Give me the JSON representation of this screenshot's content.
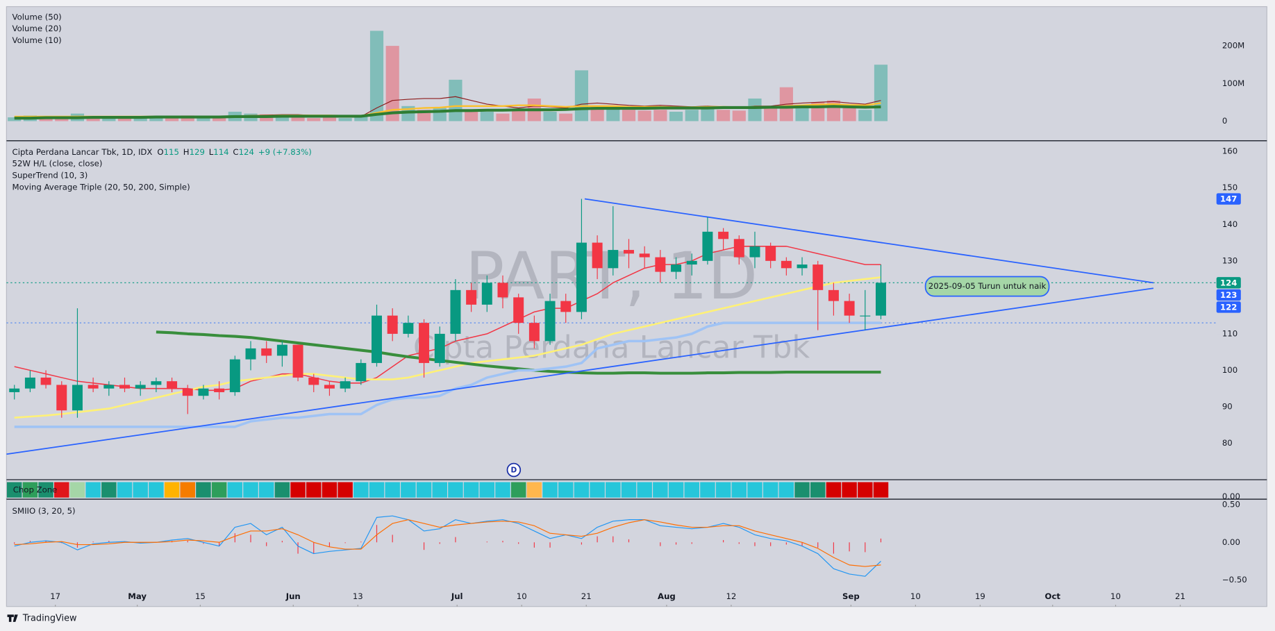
{
  "chart_data": {
    "type": "candlestick",
    "title": "Cipta Perdana Lancar Tbk, 1D, IDX",
    "legend_values": [
      {
        "key": "O",
        "value": 115
      },
      {
        "key": "H",
        "value": 129
      },
      {
        "key": "L",
        "value": 114
      },
      {
        "key": "C",
        "value": 124
      }
    ],
    "change": "+9 (+7.83%)",
    "indicators": [
      "52W H/L (close, close)",
      "SuperTrend (10, 3)",
      "Moving Average Triple (20, 50, 200, Simple)"
    ],
    "watermark": [
      "PART, 1D",
      "Cipta Perdana Lancar Tbk"
    ],
    "xlim": [
      0,
      80
    ],
    "xticks": [
      {
        "value": 3.1,
        "label": "17"
      },
      {
        "value": 8.3,
        "label": "May"
      },
      {
        "value": 12.3,
        "label": "15"
      },
      {
        "value": 18.2,
        "label": "Jun"
      },
      {
        "value": 22.3,
        "label": "13"
      },
      {
        "value": 28.6,
        "label": "Jul"
      },
      {
        "value": 32.7,
        "label": "10"
      },
      {
        "value": 36.8,
        "label": "21"
      },
      {
        "value": 41.9,
        "label": "Aug"
      },
      {
        "value": 46.0,
        "label": "12"
      },
      {
        "value": 53.6,
        "label": "Sep"
      },
      {
        "value": 57.7,
        "label": "10"
      },
      {
        "value": 61.8,
        "label": "19"
      },
      {
        "value": 66.4,
        "label": "Oct"
      },
      {
        "value": 70.4,
        "label": "10"
      },
      {
        "value": 74.5,
        "label": "21"
      }
    ],
    "ylim": [
      70,
      162.5
    ],
    "yticks": [
      80,
      90,
      100,
      110,
      120,
      130,
      140,
      150,
      160
    ],
    "colors": {
      "up": "#089981",
      "down": "#f23645"
    },
    "candles": {
      "open": [
        94,
        95,
        98,
        96,
        89,
        96,
        95,
        96,
        95,
        96,
        97,
        95,
        93,
        95,
        94,
        103,
        106,
        104,
        107,
        98,
        96,
        95,
        97,
        102,
        115,
        110,
        113,
        102,
        110,
        122,
        118,
        124,
        120,
        113,
        108,
        119,
        116,
        135,
        128,
        133,
        132,
        131,
        127,
        129,
        130,
        138,
        136,
        131,
        134,
        130,
        128,
        129,
        122,
        119,
        115,
        115
      ],
      "high": [
        96,
        100,
        100,
        97,
        117,
        98,
        97,
        98,
        97,
        98,
        98,
        96,
        96,
        97,
        104,
        108,
        108,
        108,
        107,
        99,
        97,
        98,
        103,
        118,
        117,
        115,
        114,
        112,
        125,
        124,
        126,
        126,
        121,
        115,
        121,
        121,
        147,
        137,
        145,
        136,
        134,
        133,
        131,
        132,
        142,
        139,
        137,
        138,
        135,
        131,
        131,
        130,
        124,
        121,
        122,
        129
      ],
      "low": [
        92,
        94,
        95,
        87,
        87,
        94,
        93,
        94,
        93,
        94,
        94,
        88,
        92,
        92,
        93,
        100,
        102,
        101,
        97,
        94,
        93,
        94,
        96,
        101,
        108,
        109,
        98,
        101,
        108,
        116,
        116,
        117,
        110,
        106,
        107,
        113,
        114,
        125,
        126,
        128,
        128,
        124,
        125,
        126,
        129,
        133,
        129,
        128,
        128,
        126,
        126,
        111,
        115,
        113,
        111,
        114
      ],
      "close": [
        95,
        98,
        96,
        89,
        96,
        95,
        96,
        95,
        96,
        97,
        95,
        93,
        95,
        94,
        103,
        106,
        104,
        107,
        98,
        96,
        95,
        97,
        102,
        115,
        110,
        113,
        102,
        110,
        122,
        118,
        124,
        120,
        113,
        108,
        119,
        116,
        135,
        128,
        133,
        132,
        131,
        127,
        129,
        130,
        138,
        136,
        131,
        134,
        130,
        128,
        129,
        122,
        119,
        115,
        115,
        124
      ]
    },
    "lines": [
      {
        "color": "#f23645",
        "width": 1.3,
        "values": [
          101,
          100,
          99,
          98,
          97,
          96.5,
          96,
          95.5,
          95,
          95,
          95,
          95,
          94.5,
          94.5,
          95,
          97,
          98,
          99,
          99,
          98,
          97,
          96.5,
          96.5,
          98,
          101,
          104,
          105,
          106,
          108,
          109,
          110,
          112,
          114,
          116,
          117,
          117,
          119,
          121,
          124,
          126,
          128,
          129,
          129,
          130,
          132,
          133,
          134,
          134,
          134,
          134,
          133,
          132,
          131,
          130,
          129,
          129
        ]
      },
      {
        "color": "#fff176",
        "width": 2.2,
        "values": [
          87,
          87.3,
          87.6,
          88,
          88.5,
          89,
          89.5,
          90.5,
          91.5,
          92.5,
          93.5,
          94.5,
          95.5,
          96,
          97,
          97.5,
          98,
          98.5,
          99,
          99,
          98.5,
          98,
          97.5,
          97.5,
          97.5,
          98,
          99,
          100,
          101,
          102,
          102.5,
          103,
          103.5,
          104,
          105,
          106,
          107,
          108.5,
          110,
          111,
          112,
          113,
          114,
          115,
          116,
          117,
          118,
          119,
          120,
          121,
          122,
          123,
          124,
          124.5,
          125,
          125.5
        ]
      },
      {
        "color": "#388e3c",
        "width": 3.5,
        "values": [
          null,
          null,
          null,
          null,
          null,
          null,
          null,
          null,
          null,
          110.5,
          110.3,
          110,
          109.8,
          109.5,
          109.3,
          109,
          108.5,
          108,
          107.5,
          107,
          106.5,
          106,
          105.5,
          105,
          104.3,
          103.7,
          103.2,
          102.7,
          102.2,
          101.7,
          101.2,
          100.8,
          100.4,
          100,
          99.7,
          99.5,
          99.3,
          99.2,
          99.2,
          99.3,
          99.3,
          99.2,
          99.2,
          99.2,
          99.3,
          99.3,
          99.4,
          99.4,
          99.4,
          99.5,
          99.5,
          99.5,
          99.5,
          99.5,
          99.5,
          99.5
        ]
      },
      {
        "color": "#9fc3f5",
        "width": 3,
        "values": [
          84.5,
          84.5,
          84.5,
          84.5,
          84.5,
          84.5,
          84.5,
          84.5,
          84.5,
          84.5,
          84.5,
          84.5,
          84.5,
          84.5,
          84.5,
          86,
          86.5,
          87,
          87,
          87.5,
          88,
          88,
          88,
          90.5,
          92,
          92.5,
          92.5,
          93,
          95,
          96,
          98,
          99,
          100,
          100,
          100.5,
          101,
          102,
          106,
          107,
          108,
          108,
          108.5,
          109,
          110,
          112,
          113,
          113,
          113,
          113,
          113,
          113,
          113,
          113,
          113,
          113,
          113
        ]
      }
    ],
    "trendlines": [
      {
        "color": "#2962ff",
        "x": [
          0,
          72.8
        ],
        "y": [
          77,
          122.5
        ]
      },
      {
        "color": "#2962ff",
        "x": [
          36.7,
          72.8
        ],
        "y": [
          147,
          124
        ]
      }
    ],
    "hlines": [
      {
        "value": 124,
        "color": "#089981"
      },
      {
        "value": 113,
        "color": "#5b8def"
      }
    ],
    "price_labels": [
      {
        "value": 147,
        "color": "#2962ff"
      },
      {
        "value": 124,
        "color": "#089981"
      },
      {
        "value": 123,
        "color": "#2962ff"
      },
      {
        "value": 122,
        "color": "#2962ff"
      }
    ],
    "annotation": {
      "text": "2025-09-05 Turun untuk naik",
      "x": 62.25,
      "y": 123
    },
    "marker": {
      "label": "D",
      "x": 32.2
    },
    "volume": {
      "legend": [
        "Volume (50)",
        "Volume (20)",
        "Volume (10)"
      ],
      "ylim": [
        -50,
        300
      ],
      "yticks": [
        0,
        {
          "value": 100,
          "label": "100M"
        },
        {
          "value": 200,
          "label": "200M"
        }
      ],
      "values": [
        10,
        15,
        8,
        12,
        20,
        8,
        10,
        12,
        8,
        10,
        9,
        15,
        10,
        8,
        25,
        20,
        18,
        15,
        12,
        8,
        10,
        8,
        12,
        240,
        200,
        40,
        30,
        35,
        110,
        30,
        25,
        20,
        30,
        60,
        25,
        20,
        135,
        40,
        35,
        30,
        28,
        30,
        25,
        30,
        35,
        30,
        28,
        60,
        35,
        90,
        40,
        50,
        55,
        40,
        30,
        150
      ],
      "ma": [
        {
          "color": "#8d1c1c",
          "width": 1,
          "values": [
            10,
            11,
            11,
            12,
            13,
            12,
            12,
            11,
            11,
            12,
            12,
            13,
            12,
            11,
            13,
            15,
            16,
            17,
            17,
            15,
            14,
            12,
            12,
            35,
            55,
            58,
            60,
            60,
            65,
            55,
            45,
            40,
            35,
            40,
            38,
            35,
            45,
            48,
            45,
            42,
            40,
            42,
            40,
            38,
            40,
            38,
            35,
            40,
            40,
            45,
            48,
            50,
            52,
            48,
            45,
            55
          ]
        },
        {
          "color": "#fbc02d",
          "width": 2,
          "values": [
            12,
            12,
            12,
            12,
            12,
            12,
            12,
            12,
            12,
            12,
            12,
            12,
            12,
            12,
            13,
            14,
            14,
            15,
            15,
            15,
            15,
            14,
            14,
            22,
            30,
            32,
            35,
            36,
            40,
            40,
            40,
            40,
            42,
            42,
            40,
            38,
            40,
            40,
            40,
            38,
            38,
            38,
            37,
            37,
            38,
            38,
            37,
            38,
            38,
            40,
            42,
            44,
            45,
            43,
            42,
            48
          ]
        },
        {
          "color": "#2e7d32",
          "width": 3.5,
          "values": [
            8,
            8,
            9,
            9,
            9,
            10,
            10,
            10,
            10,
            11,
            11,
            11,
            11,
            11,
            12,
            12,
            12,
            13,
            13,
            13,
            13,
            13,
            13,
            18,
            22,
            24,
            25,
            26,
            28,
            28,
            29,
            29,
            30,
            30,
            30,
            31,
            33,
            34,
            34,
            34,
            34,
            35,
            35,
            35,
            35,
            36,
            36,
            36,
            37,
            37,
            38,
            38,
            39,
            38,
            37,
            38
          ]
        }
      ]
    },
    "chop_zone": {
      "title": "Chop Zone",
      "yticks": [
        {
          "value": 0,
          "label": "0.00"
        }
      ],
      "colors": [
        "#1a8f6e",
        "#2e9e5b",
        "#1a8f6e",
        "#e0161b",
        "#a5d6a7",
        "#26c6da",
        "#1a8f6e",
        "#26c6da",
        "#26c6da",
        "#26c6da",
        "#ffb300",
        "#f57c00",
        "#1a8f6e",
        "#2e9e5b",
        "#26c6da",
        "#26c6da",
        "#26c6da",
        "#1a8f6e",
        "#d50000",
        "#d50000",
        "#d50000",
        "#d50000",
        "#26c6da",
        "#26c6da",
        "#26c6da",
        "#26c6da",
        "#26c6da",
        "#26c6da",
        "#26c6da",
        "#26c6da",
        "#26c6da",
        "#26c6da",
        "#2e9e5b",
        "#ffb74d",
        "#26c6da",
        "#26c6da",
        "#26c6da",
        "#26c6da",
        "#26c6da",
        "#26c6da",
        "#26c6da",
        "#26c6da",
        "#26c6da",
        "#26c6da",
        "#26c6da",
        "#26c6da",
        "#26c6da",
        "#26c6da",
        "#26c6da",
        "#26c6da",
        "#1a8f6e",
        "#1a8f6e",
        "#d50000",
        "#d50000",
        "#d50000",
        "#d50000"
      ]
    },
    "smiio": {
      "title": "SMIIO (3, 20, 5)",
      "ylim": [
        -0.85,
        0.55
      ],
      "yticks": [
        {
          "value": 0.5,
          "label": "0.50"
        },
        {
          "value": 0,
          "label": "0.00"
        },
        {
          "value": -0.5,
          "label": "−0.50"
        }
      ],
      "smi": [
        -0.05,
        0,
        0.02,
        0,
        -0.1,
        -0.02,
        0,
        0.01,
        -0.01,
        0,
        0.03,
        0.05,
        0,
        -0.05,
        0.2,
        0.25,
        0.1,
        0.2,
        -0.05,
        -0.15,
        -0.12,
        -0.1,
        -0.08,
        0.33,
        0.35,
        0.3,
        0.15,
        0.18,
        0.3,
        0.25,
        0.28,
        0.3,
        0.25,
        0.15,
        0.05,
        0.1,
        0.05,
        0.2,
        0.28,
        0.3,
        0.3,
        0.22,
        0.2,
        0.18,
        0.2,
        0.25,
        0.2,
        0.1,
        0.05,
        0.02,
        -0.05,
        -0.15,
        -0.35,
        -0.42,
        -0.45,
        -0.25
      ],
      "signal": [
        -0.03,
        -0.02,
        0,
        0.01,
        -0.03,
        -0.03,
        -0.02,
        0,
        0,
        0,
        0.01,
        0.03,
        0.02,
        0,
        0.08,
        0.15,
        0.15,
        0.18,
        0.1,
        0,
        -0.06,
        -0.09,
        -0.09,
        0.1,
        0.25,
        0.3,
        0.25,
        0.2,
        0.23,
        0.25,
        0.27,
        0.28,
        0.27,
        0.22,
        0.12,
        0.1,
        0.08,
        0.12,
        0.2,
        0.26,
        0.3,
        0.27,
        0.23,
        0.2,
        0.2,
        0.22,
        0.22,
        0.15,
        0.1,
        0.05,
        0,
        -0.08,
        -0.2,
        -0.3,
        -0.32,
        -0.3
      ],
      "histogram": [
        -0.02,
        0.02,
        0.02,
        -0.01,
        -0.07,
        0.01,
        0.02,
        0.01,
        -0.01,
        0,
        0.02,
        0.02,
        -0.02,
        -0.05,
        0.12,
        0.1,
        -0.05,
        0.02,
        -0.15,
        -0.15,
        -0.06,
        -0.01,
        0.01,
        0.23,
        0.1,
        0,
        -0.1,
        -0.02,
        0.07,
        0,
        0.01,
        0.02,
        -0.02,
        -0.07,
        -0.07,
        0,
        -0.03,
        0.08,
        0.08,
        0.04,
        0,
        -0.05,
        -0.03,
        -0.02,
        0,
        0.03,
        -0.02,
        -0.05,
        -0.05,
        -0.03,
        -0.05,
        -0.07,
        -0.15,
        -0.12,
        -0.13,
        0.05
      ]
    },
    "branding": "TradingView"
  }
}
